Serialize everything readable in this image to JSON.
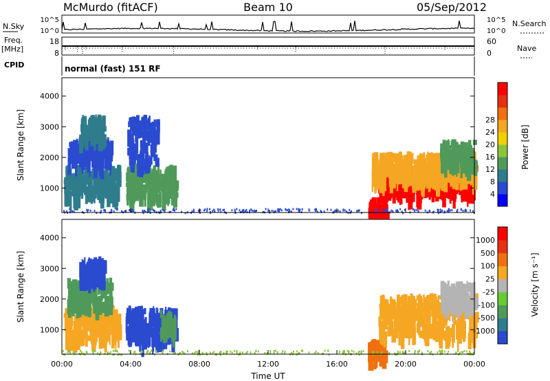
{
  "header": {
    "station": "McMurdo (fitACF)",
    "beam": "Beam 10",
    "date": "05/Sep/2012"
  },
  "panels": {
    "nsky_label": "N.Sky",
    "nsky_ticks": [
      "10^5",
      "10^0"
    ],
    "nsearch_label": "N.Search",
    "nsearch_ticks": [
      "10^5",
      "10^0"
    ],
    "freq_label": "Freq.",
    "freq_unit": "[MHz]",
    "freq_ticks": [
      "18",
      "8"
    ],
    "nave_label": "Nave",
    "nave_ticks": [
      "60",
      "0"
    ],
    "cpid_label": "CPID",
    "cpid_text": "normal (fast) 151 RF"
  },
  "colorbars": {
    "power": {
      "label": "Power [dB]",
      "ticks": [
        "4",
        "8",
        "12",
        "16",
        "20",
        "24",
        "28"
      ],
      "colors": [
        "#0000ff",
        "#2a4bd0",
        "#2f7d8c",
        "#4f9a5a",
        "#8cc43c",
        "#f0d000",
        "#f5a623",
        "#f07010",
        "#e83010",
        "#ff0000"
      ]
    },
    "velocity": {
      "label": "Velocity [m s⁻¹]",
      "ticks": [
        "1000",
        "500",
        "100",
        "25",
        "-25",
        "-100",
        "-500",
        "-1000"
      ],
      "colors": [
        "#2a4bd0",
        "#2f7d8c",
        "#4f9a5a",
        "#66cc33",
        "#b4b4b4",
        "#f5a623",
        "#f07010",
        "#e83010",
        "#ff0000"
      ]
    }
  },
  "chart_data": [
    {
      "type": "heatmap",
      "name": "power",
      "ylabel": "Slant Range [km]",
      "ylim": [
        200,
        4600
      ],
      "yticks": [
        "1000",
        "2000",
        "3000",
        "4000"
      ],
      "xlim_hours": [
        0,
        24
      ],
      "xticks": [
        "00:00",
        "04:00",
        "08:00",
        "12:00",
        "16:00",
        "20:00",
        "00:00"
      ],
      "regions": [
        {
          "t0": 0.1,
          "t1": 3.3,
          "r0": 800,
          "r1": 1800,
          "c": "#2f7d8c"
        },
        {
          "t0": 0.3,
          "t1": 2.8,
          "r0": 1900,
          "r1": 2700,
          "c": "#2a4bd0"
        },
        {
          "t0": 1.0,
          "t1": 2.4,
          "r0": 2700,
          "r1": 3400,
          "c": "#2f7d8c"
        },
        {
          "t0": 3.7,
          "t1": 6.6,
          "r0": 700,
          "r1": 1800,
          "c": "#4f9a5a"
        },
        {
          "t0": 3.8,
          "t1": 5.6,
          "r0": 1900,
          "r1": 3400,
          "c": "#2a4bd0"
        },
        {
          "t0": 17.8,
          "t1": 18.8,
          "r0": 200,
          "r1": 700,
          "c": "#ff0000"
        },
        {
          "t0": 18.4,
          "t1": 24.0,
          "r0": 900,
          "r1": 1800,
          "c": "#ff0000"
        },
        {
          "t0": 18.0,
          "t1": 24.0,
          "r0": 1300,
          "r1": 2200,
          "c": "#f5a623"
        },
        {
          "t0": 22.0,
          "t1": 24.0,
          "r0": 1800,
          "r1": 2600,
          "c": "#4f9a5a"
        }
      ]
    },
    {
      "type": "heatmap",
      "name": "velocity",
      "ylabel": "Slant Range [km]",
      "ylim": [
        200,
        4600
      ],
      "yticks": [
        "1000",
        "2000",
        "3000",
        "4000"
      ],
      "xlim_hours": [
        0,
        24
      ],
      "xticks": [
        "00:00",
        "04:00",
        "08:00",
        "12:00",
        "16:00",
        "20:00",
        "00:00"
      ],
      "xlabel": "Time UT",
      "regions": [
        {
          "t0": 0.1,
          "t1": 3.3,
          "r0": 800,
          "r1": 1800,
          "c": "#f5a623"
        },
        {
          "t0": 0.3,
          "t1": 2.8,
          "r0": 1900,
          "r1": 2700,
          "c": "#4f9a5a"
        },
        {
          "t0": 1.0,
          "t1": 2.4,
          "r0": 2700,
          "r1": 3400,
          "c": "#2a4bd0"
        },
        {
          "t0": 3.7,
          "t1": 6.6,
          "r0": 700,
          "r1": 1800,
          "c": "#2a4bd0"
        },
        {
          "t0": 5.7,
          "t1": 6.6,
          "r0": 900,
          "r1": 1700,
          "c": "#4f9a5a"
        },
        {
          "t0": 17.8,
          "t1": 18.8,
          "r0": 200,
          "r1": 700,
          "c": "#f07010"
        },
        {
          "t0": 18.4,
          "t1": 24.0,
          "r0": 900,
          "r1": 2200,
          "c": "#f5a623"
        },
        {
          "t0": 22.0,
          "t1": 24.0,
          "r0": 1800,
          "r1": 2600,
          "c": "#b4b4b4"
        }
      ]
    }
  ]
}
